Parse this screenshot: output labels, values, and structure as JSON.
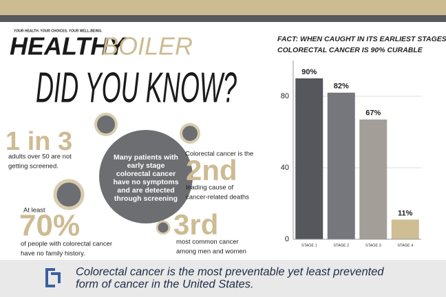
{
  "header": {
    "tagline": "YOUR HEALTH. YOUR CHOICES. YOUR WELL-BEING.",
    "brand_bold": "HEALTHY",
    "brand_light": "BOILER"
  },
  "headline": "DID YOU KNOW?",
  "center_text": [
    "Many patients with",
    "early stage",
    "colorectal cancer",
    "have no symptoms",
    "and are detected",
    "through screening"
  ],
  "facts": [
    {
      "big": "1 in 3",
      "lines": [
        "adults over 50 are not",
        "getting screened."
      ]
    },
    {
      "intro": "Colorectal cancer is the",
      "big": "2nd",
      "lines": [
        "leading cause of",
        "cancer-related deaths"
      ]
    },
    {
      "intro": "At least",
      "big": "70%",
      "lines": [
        "of people with colorectal cancer",
        "have no family history."
      ]
    },
    {
      "big": "3rd",
      "lines": [
        "most common cancer",
        "among men and women"
      ]
    }
  ],
  "footer": [
    "Colorectal cancer is the most preventable yet least prevented",
    "form of cancer in the United States."
  ],
  "chart_data": {
    "type": "bar",
    "title": [
      "FACT: WHEN CAUGHT IN ITS EARLIEST STAGES,",
      "COLORECTAL CANCER IS 90% CURABLE"
    ],
    "categories": [
      "STAGE 1",
      "STAGE 2",
      "STAGE 3",
      "STAGE 4"
    ],
    "values": [
      90,
      82,
      67,
      11
    ],
    "value_labels": [
      "90%",
      "82%",
      "67%",
      "11%"
    ],
    "colors": [
      "#55575c",
      "#76777c",
      "#a39e97",
      "#cfbd93"
    ],
    "ylim": [
      0,
      100
    ],
    "yticks": [
      0,
      40,
      80
    ],
    "grid": true
  }
}
